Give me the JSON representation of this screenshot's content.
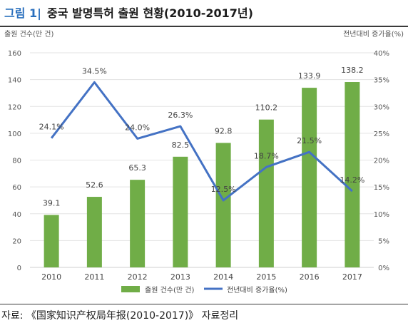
{
  "figure": {
    "label": "그림 1|",
    "title": "중국 발명특허 출원 현황(2010-2017년)",
    "source": "자료: 《国家知识产权局年报(2010-2017)》 자료정리"
  },
  "chart_data": {
    "type": "bar",
    "categories": [
      "2010",
      "2011",
      "2012",
      "2013",
      "2014",
      "2015",
      "2016",
      "2017"
    ],
    "series": [
      {
        "name": "출원 건수(만 건)",
        "type": "bar",
        "axis": "left",
        "color": "#70ad47",
        "values": [
          39.1,
          52.6,
          65.3,
          82.5,
          92.8,
          110.2,
          133.9,
          138.2
        ],
        "labels": [
          "39.1",
          "52.6",
          "65.3",
          "82.5",
          "92.8",
          "110.2",
          "133.9",
          "138.2"
        ]
      },
      {
        "name": "전년대비 증가율(%)",
        "type": "line",
        "axis": "right",
        "color": "#4472c4",
        "values": [
          24.1,
          34.5,
          24.0,
          26.3,
          12.5,
          18.7,
          21.5,
          14.2
        ],
        "labels": [
          "24.1%",
          "34.5%",
          "24.0%",
          "26.3%",
          "12.5%",
          "18.7%",
          "21.5%",
          "14.2%"
        ]
      }
    ],
    "ylabel_left": "출원 건수(만 건)",
    "ylabel_right": "전년대비 증가율(%)",
    "ylim_left": [
      0,
      160
    ],
    "ylim_right": [
      0,
      40
    ],
    "yticks_left": [
      "0",
      "20",
      "40",
      "60",
      "80",
      "100",
      "120",
      "140",
      "160"
    ],
    "yticks_right": [
      "0%",
      "5%",
      "10%",
      "15%",
      "20%",
      "25%",
      "30%",
      "35%",
      "40%"
    ],
    "grid": true,
    "legend_position": "bottom"
  }
}
